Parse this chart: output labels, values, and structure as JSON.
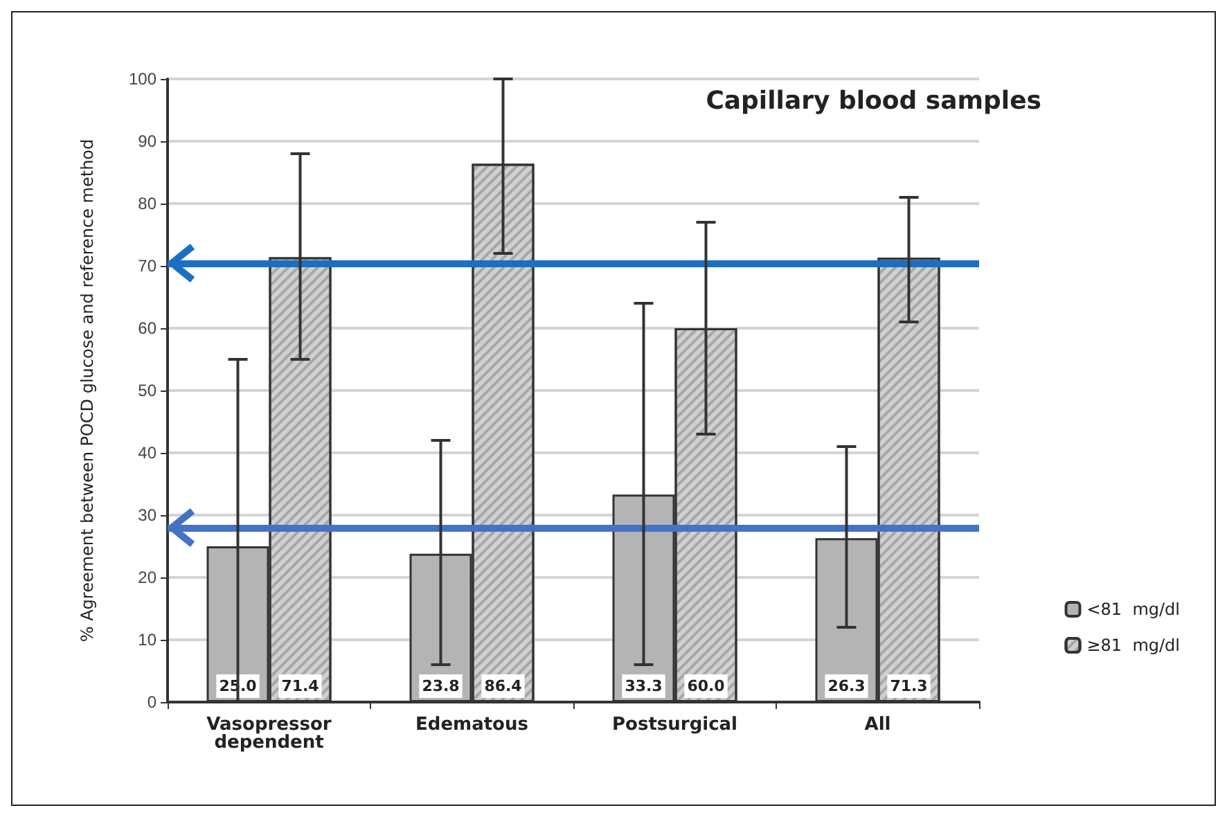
{
  "chart_data": {
    "type": "bar",
    "title": "Capillary blood samples",
    "ylabel": "% Agreement between POCD glucose and reference method",
    "categories": [
      "Vasopressor\ndependent",
      "Edematous",
      "Postsurgical",
      "All"
    ],
    "series": [
      {
        "name": "<81  mg/dl",
        "color": "#b4b4b4",
        "values": [
          25.0,
          23.8,
          33.3,
          26.3
        ],
        "value_labels": [
          "25.0",
          "23.8",
          "33.3",
          "26.3"
        ],
        "errors": [
          [
            0,
            55
          ],
          [
            6,
            42
          ],
          [
            6,
            64
          ],
          [
            12,
            41
          ]
        ]
      },
      {
        "name": "≥81  mg/dl",
        "color": "#d0d0d0",
        "values": [
          71.4,
          86.4,
          60.0,
          71.3
        ],
        "value_labels": [
          "71.4",
          "86.4",
          "60.0",
          "71.3"
        ],
        "errors": [
          [
            55,
            88
          ],
          [
            72,
            100
          ],
          [
            43,
            77
          ],
          [
            61,
            81
          ]
        ]
      }
    ],
    "ref_lines": [
      {
        "axis": "y",
        "value": 70.5,
        "color": "#1a6fc4"
      },
      {
        "axis": "y",
        "value": 28,
        "color": "#4472c4"
      }
    ],
    "ylim": [
      0,
      100
    ],
    "yticks": [
      0,
      10,
      20,
      30,
      40,
      50,
      60,
      70,
      80,
      90,
      100
    ],
    "grid": "y",
    "legend": "right"
  }
}
